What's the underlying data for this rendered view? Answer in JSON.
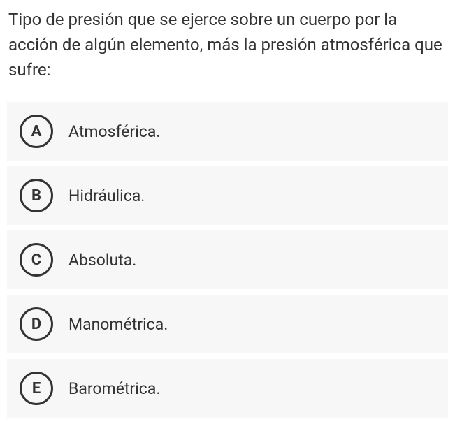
{
  "question": {
    "text": "Tipo de presión que se ejerce sobre un cuerpo por la acción de algún elemento, más la presión atmosférica que sufre:"
  },
  "options": [
    {
      "letter": "A",
      "text": "Atmosférica."
    },
    {
      "letter": "B",
      "text": "Hidráulica."
    },
    {
      "letter": "C",
      "text": "Absoluta."
    },
    {
      "letter": "D",
      "text": "Manométrica."
    },
    {
      "letter": "E",
      "text": "Barométrica."
    }
  ],
  "colors": {
    "background": "#ffffff",
    "option_bg": "#f7f7f8",
    "text": "#333333",
    "circle_border": "#333333"
  },
  "typography": {
    "question_fontsize": 24,
    "option_fontsize": 23,
    "letter_fontsize": 22,
    "letter_fontweight": 700
  }
}
